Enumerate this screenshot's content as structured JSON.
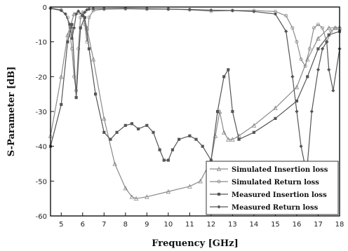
{
  "chart_data": {
    "type": "line",
    "xlabel": "Frequency [GHz]",
    "ylabel": "S-Parameter [dB]",
    "xlim": [
      4.5,
      18
    ],
    "ylim": [
      -60,
      0
    ],
    "xticks": [
      "5",
      "6",
      "7",
      "8",
      "9",
      "10",
      "11",
      "12",
      "13",
      "14",
      "15",
      "16",
      "17",
      "18"
    ],
    "yticks": [
      "0",
      "-10",
      "-20",
      "-30",
      "-40",
      "-50",
      "-60"
    ],
    "grid": false,
    "legend_position": "bottom-right",
    "series": [
      {
        "name": "Simulated Insertion loss",
        "color": "#8a8a8a",
        "marker": "triangle",
        "x": [
          4.5,
          5.0,
          5.3,
          5.6,
          5.8,
          6.0,
          6.2,
          6.5,
          7.0,
          7.5,
          8.0,
          8.3,
          8.5,
          9.0,
          10.0,
          11.0,
          11.5,
          12.0,
          12.2,
          12.4,
          12.6,
          12.8,
          13.0,
          13.3,
          14.0,
          15.0,
          16.0,
          16.5,
          17.0,
          17.5,
          17.8,
          18.0
        ],
        "y": [
          -37,
          -20,
          -8,
          -2,
          -1.5,
          -2,
          -6,
          -15,
          -32,
          -45,
          -52,
          -54.5,
          -55,
          -54.5,
          -53,
          -51.5,
          -50,
          -44,
          -37,
          -30,
          -36,
          -38,
          -38,
          -37,
          -34,
          -29,
          -23,
          -15,
          -9,
          -6,
          -6,
          -6
        ]
      },
      {
        "name": "Simulated Return loss",
        "color": "#8a8a8a",
        "marker": "circle",
        "x": [
          4.5,
          5.0,
          5.3,
          5.5,
          5.6,
          5.7,
          5.8,
          5.9,
          6.0,
          6.1,
          6.2,
          6.3,
          6.5,
          7.0,
          8.0,
          9.0,
          10.0,
          11.0,
          12.0,
          13.0,
          14.0,
          15.0,
          15.5,
          15.8,
          16.0,
          16.2,
          16.4,
          16.6,
          16.8,
          17.0,
          17.2,
          17.4,
          17.6,
          17.8,
          18.0
        ],
        "y": [
          -0.3,
          -0.8,
          -3,
          -12,
          -20,
          -24,
          -12,
          -3,
          -1.5,
          -5,
          -10,
          -3,
          -1,
          -0.6,
          -0.5,
          -0.6,
          -0.6,
          -0.8,
          -1.2,
          -1.0,
          -1.0,
          -1.3,
          -2.5,
          -6,
          -10,
          -15,
          -17,
          -12,
          -6,
          -5,
          -6,
          -10,
          -7,
          -6,
          -6
        ]
      },
      {
        "name": "Measured Insertion loss",
        "color": "#555555",
        "marker": "square",
        "x": [
          4.5,
          5.0,
          5.3,
          5.5,
          5.7,
          5.9,
          6.1,
          6.3,
          6.6,
          7.0,
          7.3,
          7.6,
          8.0,
          8.3,
          8.6,
          9.0,
          9.3,
          9.6,
          9.8,
          10.0,
          10.2,
          10.5,
          11.0,
          11.3,
          11.6,
          12.0,
          12.3,
          12.6,
          12.8,
          13.0,
          13.3,
          14.0,
          15.0,
          16.0,
          16.5,
          17.0,
          17.5,
          18.0
        ],
        "y": [
          -40,
          -28,
          -10,
          -5,
          -26,
          -6,
          -3,
          -12,
          -25,
          -36,
          -38,
          -36,
          -34,
          -33.5,
          -35,
          -34,
          -36,
          -41,
          -44,
          -44,
          -41,
          -38,
          -37,
          -38,
          -40,
          -44,
          -30,
          -20,
          -18,
          -30,
          -38,
          -36,
          -32,
          -27,
          -20,
          -12,
          -8,
          -7
        ]
      },
      {
        "name": "Measured Return loss",
        "color": "#555555",
        "marker": "diamond",
        "x": [
          4.5,
          5.0,
          5.2,
          5.4,
          5.5,
          5.6,
          5.7,
          5.8,
          6.0,
          6.1,
          6.2,
          6.3,
          6.5,
          7.0,
          8.0,
          9.0,
          10.0,
          11.0,
          12.0,
          13.0,
          14.0,
          15.0,
          15.5,
          15.8,
          16.0,
          16.2,
          16.4,
          16.5,
          16.7,
          17.0,
          17.2,
          17.4,
          17.5,
          17.7,
          18.0
        ],
        "y": [
          -0.4,
          -1.0,
          -2,
          -5,
          -9,
          -6,
          -2,
          -1.2,
          -2.5,
          -1.5,
          -0.8,
          -0.6,
          -0.5,
          -0.5,
          -0.4,
          -0.5,
          -0.6,
          -0.7,
          -0.9,
          -1.0,
          -1.3,
          -2,
          -7,
          -20,
          -30,
          -40,
          -46,
          -45,
          -30,
          -18,
          -12,
          -10,
          -18,
          -24,
          -12
        ]
      }
    ]
  }
}
